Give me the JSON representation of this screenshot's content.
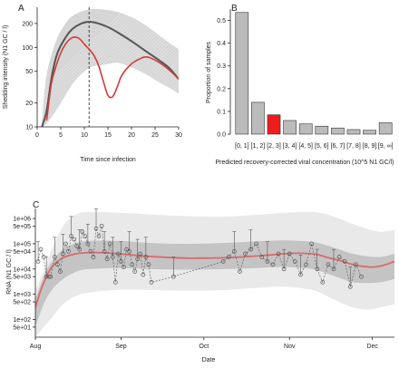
{
  "chart_data": [
    {
      "panel": "A",
      "type": "line",
      "xlabel": "Time since infection",
      "ylabel": "Shedding intensity (N1 GC / l)",
      "xlim": [
        0,
        30
      ],
      "ylim": [
        10,
        320
      ],
      "y_scale": "log",
      "xticks": [
        0,
        5,
        10,
        15,
        20,
        25,
        30
      ],
      "yticks": [
        10,
        20,
        50,
        100,
        200
      ],
      "vline_x": 11,
      "band": {
        "x": [
          1,
          2,
          4,
          6,
          8,
          11,
          14,
          17,
          20,
          23,
          26,
          28,
          30
        ],
        "lower": [
          10,
          11,
          16,
          25,
          38,
          55,
          60,
          64,
          56,
          46,
          36,
          31,
          26
        ],
        "upper": [
          12,
          45,
          120,
          200,
          260,
          300,
          300,
          280,
          240,
          190,
          140,
          115,
          95
        ]
      },
      "series": [
        {
          "name": "",
          "color": "#555555",
          "x": [
            1,
            2,
            3,
            4,
            5,
            7,
            9,
            11,
            13,
            15,
            17,
            20,
            23,
            26,
            28,
            30
          ],
          "y": [
            10,
            16,
            40,
            75,
            105,
            160,
            195,
            210,
            200,
            180,
            155,
            120,
            90,
            68,
            55,
            40
          ]
        },
        {
          "name": "",
          "color": "#d23a3a",
          "x": [
            2,
            3,
            4,
            5,
            6,
            7,
            8,
            9,
            10,
            11,
            12,
            13,
            14,
            15,
            16,
            17,
            18,
            20,
            22,
            23,
            24,
            26,
            28,
            30
          ],
          "y": [
            12,
            35,
            58,
            85,
            110,
            128,
            135,
            128,
            110,
            95,
            80,
            60,
            38,
            25,
            24,
            32,
            45,
            62,
            73,
            76,
            74,
            64,
            52,
            40
          ]
        }
      ]
    },
    {
      "panel": "B",
      "type": "bar",
      "xlabel": "Predicted recovery-corrected viral concentration (10^5 N1 GC/l)",
      "ylabel": "Proportion of samples",
      "ylim": [
        0,
        0.55
      ],
      "yticks": [
        0.0,
        0.1,
        0.2,
        0.3,
        0.4,
        0.5
      ],
      "categories": [
        "[0, 1]",
        "[1, 2]",
        "[2, 3]",
        "[3, 4]",
        "[4, 5]",
        "[5, 6]",
        "[6, 7]",
        "[7, 8]",
        "[8, 9]",
        "[9, ∞]"
      ],
      "values": [
        0.535,
        0.14,
        0.085,
        0.06,
        0.045,
        0.035,
        0.027,
        0.02,
        0.017,
        0.05
      ],
      "colors": [
        "#bbbbbb",
        "#bbbbbb",
        "#ee1c1c",
        "#bbbbbb",
        "#bbbbbb",
        "#bbbbbb",
        "#bbbbbb",
        "#bbbbbb",
        "#bbbbbb",
        "#bbbbbb"
      ]
    },
    {
      "panel": "C",
      "type": "scatter",
      "xlabel": "Date",
      "ylabel": "RNA (N1 GC / l)",
      "y_scale": "log",
      "ylim": [
        20,
        2500000
      ],
      "xlim": [
        0,
        130
      ],
      "xtick_labels": [
        "Aug",
        "Sep",
        "Oct",
        "Nov",
        "Dec"
      ],
      "xtick_values": [
        0,
        31,
        61,
        92,
        122
      ],
      "ytick_labels": [
        "1e+06",
        "5e+05",
        "1e+05",
        "5e+04",
        "1e+04",
        "5e+03",
        "1e+03",
        "5e+02",
        "1e+02",
        "5e+01"
      ],
      "ytick_values": [
        1000000,
        500000,
        100000,
        50000,
        10000,
        5000,
        1000,
        500,
        100,
        50
      ],
      "outer_band": {
        "x": [
          0,
          3,
          6,
          10,
          15,
          20,
          30,
          40,
          50,
          60,
          70,
          80,
          90,
          100,
          105,
          110,
          115,
          120,
          125,
          130
        ],
        "lower": [
          20,
          50,
          120,
          400,
          900,
          1200,
          1500,
          1500,
          1400,
          1400,
          1500,
          1800,
          2000,
          1500,
          900,
          500,
          300,
          250,
          300,
          400
        ],
        "upper": [
          1500,
          8000,
          60000,
          500000,
          1500000,
          1800000,
          1700000,
          1500000,
          1300000,
          1200000,
          1200000,
          1400000,
          1700000,
          1800000,
          1500000,
          1000000,
          600000,
          400000,
          300000,
          350000
        ]
      },
      "inner_band": {
        "x": [
          0,
          3,
          6,
          10,
          15,
          20,
          30,
          40,
          50,
          60,
          70,
          80,
          90,
          100,
          105,
          110,
          115,
          120,
          125,
          130
        ],
        "lower": [
          50,
          400,
          1500,
          4000,
          8000,
          10000,
          11000,
          10000,
          9500,
          9500,
          10000,
          11000,
          12000,
          10000,
          7000,
          4500,
          3000,
          2800,
          3000,
          4000
        ],
        "upper": [
          600,
          5000,
          20000,
          60000,
          110000,
          130000,
          130000,
          110000,
          100000,
          100000,
          110000,
          125000,
          135000,
          120000,
          90000,
          60000,
          40000,
          32000,
          30000,
          40000
        ]
      },
      "fit_line": {
        "x": [
          0,
          2,
          4,
          6,
          8,
          10,
          13,
          16,
          20,
          25,
          30,
          35,
          40,
          45,
          50,
          55,
          60,
          65,
          70,
          75,
          80,
          85,
          90,
          95,
          100,
          103,
          106,
          110,
          114,
          118,
          122,
          126,
          130
        ],
        "y": [
          300,
          1500,
          5000,
          12000,
          20000,
          28000,
          36000,
          42000,
          45000,
          44000,
          40000,
          36000,
          32000,
          30000,
          28000,
          27000,
          27000,
          27500,
          28500,
          30000,
          33000,
          36000,
          40000,
          42000,
          40000,
          35000,
          28000,
          22000,
          16000,
          13000,
          12000,
          14000,
          20000
        ]
      },
      "points": {
        "x": [
          1,
          2,
          3,
          4,
          5,
          5.5,
          7,
          8,
          9,
          10,
          11,
          12,
          13,
          14,
          15,
          16,
          17,
          18,
          19,
          20,
          21,
          22,
          23,
          24,
          25,
          26,
          27,
          28,
          29,
          30,
          31,
          32,
          33,
          34,
          35,
          36,
          37,
          38,
          39,
          40,
          41,
          42,
          50,
          68,
          70,
          72,
          74,
          76,
          78,
          80,
          82,
          84,
          86,
          88,
          90,
          92,
          94,
          96,
          98,
          100,
          102,
          104,
          106,
          108,
          110,
          112,
          114,
          116,
          118
        ],
        "y": [
          20000,
          60000,
          30000,
          5000,
          5000,
          5000,
          30000,
          15000,
          8000,
          40000,
          100000,
          50000,
          200000,
          150000,
          80000,
          60000,
          300000,
          200000,
          100000,
          50000,
          30000,
          400000,
          200000,
          500000,
          50000,
          25000,
          100000,
          30000,
          3000,
          40000,
          20000,
          12000,
          60000,
          50000,
          15000,
          8000,
          25000,
          40000,
          6000,
          30000,
          15000,
          3000,
          5000,
          20000,
          30000,
          50000,
          8000,
          40000,
          60000,
          100000,
          30000,
          20000,
          15000,
          40000,
          10000,
          40000,
          20000,
          6000,
          15000,
          100000,
          10000,
          3000,
          15000,
          10000,
          30000,
          20000,
          2000,
          15000,
          5000
        ]
      }
    }
  ]
}
